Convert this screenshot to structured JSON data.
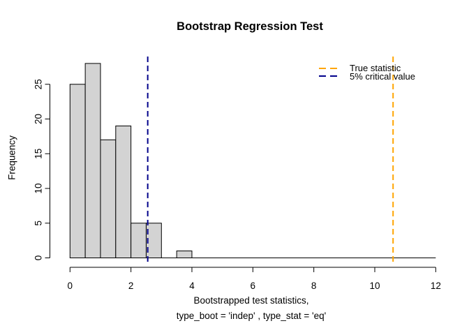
{
  "chart_data": {
    "type": "histogram",
    "title": "Bootstrap Regression Test",
    "ylabel": "Frequency",
    "xlabel": [
      "Bootstrapped test statistics,",
      "type_boot = 'indep' , type_stat = 'eq'"
    ],
    "bins": {
      "start": 0,
      "bin_width": 0.5,
      "counts": [
        25,
        28,
        17,
        19,
        5,
        5,
        0,
        1
      ]
    },
    "baseline_extent": [
      0,
      12
    ],
    "xlim": [
      0,
      12
    ],
    "ylim": [
      0,
      28
    ],
    "x_ticks": [
      "0",
      "2",
      "4",
      "6",
      "8",
      "10",
      "12"
    ],
    "x_tick_values": [
      0,
      2,
      4,
      6,
      8,
      10,
      12
    ],
    "y_ticks": [
      "0",
      "5",
      "10",
      "15",
      "20",
      "25"
    ],
    "y_tick_values": [
      0,
      5,
      10,
      15,
      20,
      25
    ],
    "grid": "off",
    "bar_fill": "#D3D3D3",
    "bar_stroke": "#000000",
    "axis_color": "#000000",
    "vlines": [
      {
        "value": 10.6,
        "color": "#FFA500",
        "style": "dashed",
        "name": "true-statistic-line",
        "label": "True statistic"
      },
      {
        "value": 2.55,
        "color": "#00008B",
        "style": "dashed",
        "name": "critical-value-line",
        "label": "5% critical value"
      }
    ],
    "legend": {
      "position": "top-right",
      "border": "none",
      "items": [
        {
          "label": "True statistic",
          "color": "#FFA500"
        },
        {
          "label": "5% critical value",
          "color": "#00008B"
        }
      ]
    }
  }
}
